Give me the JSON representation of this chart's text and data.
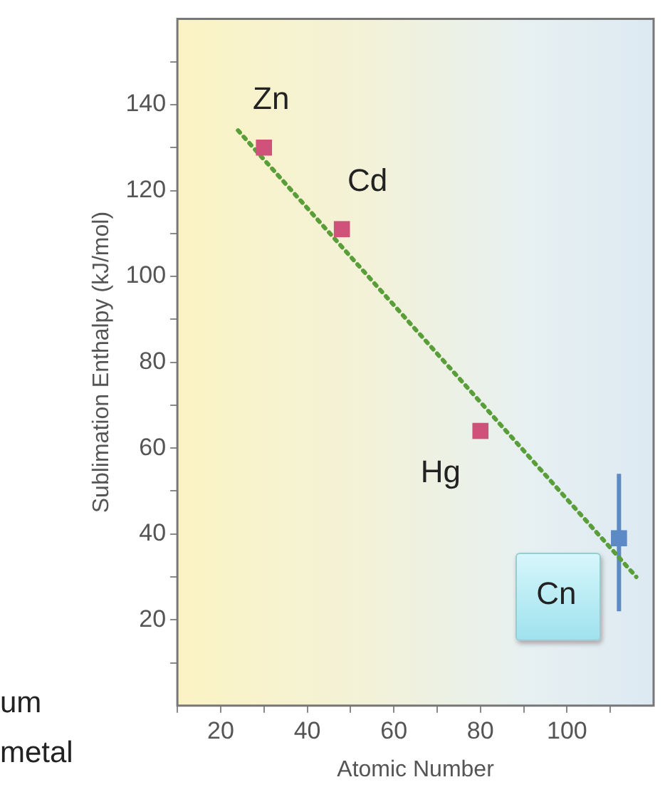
{
  "chart_data": {
    "type": "scatter",
    "xlabel": "Atomic Number",
    "ylabel": "Sublimation Enthalpy (kJ/mol)",
    "marker": "square",
    "legend": false,
    "xlim": [
      10,
      120
    ],
    "xticks": [
      {
        "value": 10,
        "label": null
      },
      20,
      {
        "value": 30,
        "label": null
      },
      40,
      {
        "value": 50,
        "label": null
      },
      60,
      {
        "value": 70,
        "label": null
      },
      80,
      {
        "value": 90,
        "label": null
      },
      100,
      {
        "value": 110,
        "label": null
      }
    ],
    "ylim": [
      0,
      160
    ],
    "yticks": [
      {
        "value": 10,
        "label": null
      },
      20,
      {
        "value": 30,
        "label": null
      },
      40,
      {
        "value": 50,
        "label": null
      },
      60,
      {
        "value": 70,
        "label": null
      },
      80,
      {
        "value": 90,
        "label": null
      },
      100,
      {
        "value": 110,
        "label": null
      },
      120,
      {
        "value": 130,
        "label": null
      },
      140,
      {
        "value": 150,
        "label": null
      }
    ],
    "series": [
      {
        "type": "line",
        "line_style": "dotted",
        "marker": "none",
        "color": "#5a9e3a",
        "x": [
          24,
          116
        ],
        "values": [
          134,
          30
        ]
      },
      {
        "color": "#d0527a",
        "x": [
          30,
          48,
          80
        ],
        "values": [
          130,
          111,
          64
        ]
      },
      {
        "color": "#5b8ac6",
        "x": [
          112
        ],
        "values": [
          39
        ],
        "errors": [
          [
            22,
            54
          ]
        ]
      }
    ],
    "annotations": [
      {
        "text": "Zn",
        "x": 30,
        "y": 130
      },
      {
        "text": "Cd",
        "x": 48,
        "y": 111
      },
      {
        "text": "Hg",
        "x": 80,
        "y": 64
      },
      {
        "text": "Cn",
        "x": 112,
        "y": 39
      },
      "um",
      "metal"
    ]
  }
}
